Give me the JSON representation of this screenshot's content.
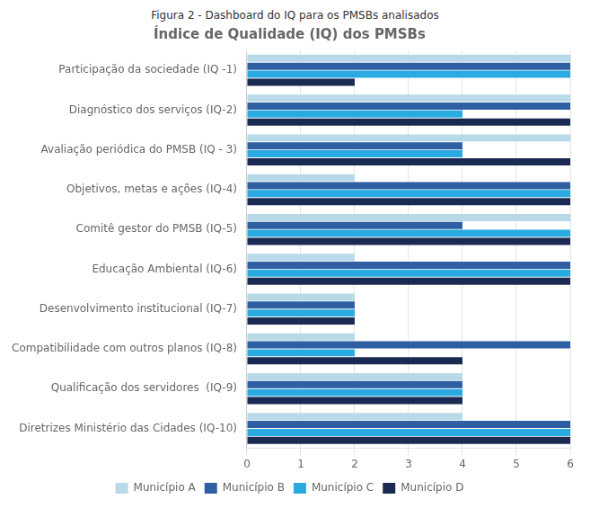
{
  "chart_data": {
    "type": "bar",
    "orientation": "horizontal",
    "title": "Índice de Qualidade (IQ) dos PMSBs",
    "subtitle": "Figura 2 - Dashboard do IQ para os PMSBs analisados",
    "categories": [
      "Participação da sociedade (IQ -1)",
      "Diagnóstico dos serviços (IQ-2)",
      "Avaliação periódica do PMSB (IQ - 3)",
      "Objetivos, metas e ações (IQ-4)",
      "Comitê gestor do PMSB (IQ-5)",
      "Educação Ambiental (IQ-6)",
      "Desenvolvimento institucional (IQ-7)",
      "Compatibilidade com outros planos (IQ-8)",
      "Qualificação dos servidores  (IQ-9)",
      "Diretrizes Ministério das Cidades (IQ-10)"
    ],
    "series": [
      {
        "name": "Município A",
        "color": "#b8d9e8",
        "values": [
          6,
          6,
          6,
          2,
          6,
          2,
          2,
          2,
          4,
          4
        ]
      },
      {
        "name": "Município B",
        "color": "#2e5fa3",
        "values": [
          6,
          6,
          4,
          6,
          4,
          6,
          2,
          6,
          4,
          6
        ]
      },
      {
        "name": "Município C",
        "color": "#29abe2",
        "values": [
          6,
          4,
          4,
          6,
          6,
          6,
          2,
          2,
          4,
          6
        ]
      },
      {
        "name": "Município D",
        "color": "#1a2a52",
        "values": [
          2,
          6,
          6,
          6,
          6,
          6,
          2,
          4,
          4,
          6
        ]
      }
    ],
    "xlim": [
      0,
      6
    ],
    "xticks": [
      0,
      1,
      2,
      3,
      4,
      5,
      6
    ],
    "grid": true,
    "legend": "bottom"
  }
}
